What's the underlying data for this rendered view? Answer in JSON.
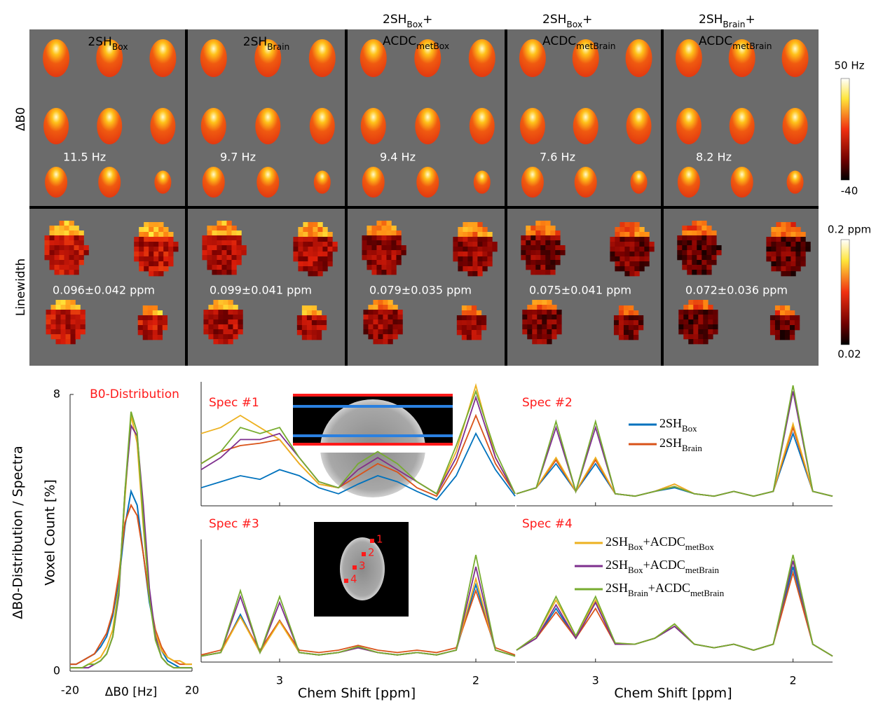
{
  "columns": [
    {
      "lines": [
        [
          "2SH",
          "Box"
        ]
      ]
    },
    {
      "lines": [
        [
          "2SH",
          "Brain"
        ]
      ]
    },
    {
      "lines": [
        [
          "2SH",
          "Box",
          "+"
        ],
        [
          "ACDC",
          "metBox"
        ]
      ]
    },
    {
      "lines": [
        [
          "2SH",
          "Box",
          "+"
        ],
        [
          "ACDC",
          "metBrain"
        ]
      ]
    },
    {
      "lines": [
        [
          "2SH",
          "Brain",
          "+"
        ],
        [
          "ACDC",
          "metBrain"
        ]
      ]
    }
  ],
  "rows": [
    "ΔB0",
    "Linewidth"
  ],
  "b0_annotations": [
    "11.5 Hz",
    "9.7 Hz",
    "9.4 Hz",
    "7.6 Hz",
    "8.2 Hz"
  ],
  "linewidth_annotations": [
    "0.096±0.042 ppm",
    "0.099±0.041 ppm",
    "0.079±0.035 ppm",
    "0.075±0.041 ppm",
    "0.072±0.036 ppm"
  ],
  "colorbars": [
    {
      "top": "50 Hz",
      "bottom": "-40"
    },
    {
      "top": "0.2 ppm",
      "bottom": "0.02"
    }
  ],
  "figure_ylabel": "ΔB0-Distribution / Spectra",
  "inset_points": [
    "1",
    "2",
    "3",
    "4"
  ],
  "chart_data": [
    {
      "type": "line",
      "title": "B0-Distribution",
      "ylabel": "Voxel Count [%]",
      "xlabel": "ΔB0 [Hz]",
      "x": [
        -20,
        -18,
        -16,
        -14,
        -12,
        -10,
        -8,
        -6,
        -4,
        -2,
        0,
        2,
        4,
        6,
        8,
        10,
        12,
        14,
        16,
        18,
        20
      ],
      "xlim": [
        -20,
        20
      ],
      "xticks": [
        -20,
        20
      ],
      "ylim": [
        0,
        8
      ],
      "yticks": [
        0,
        8
      ],
      "series": [
        {
          "name": [
            "2SH",
            "Box"
          ],
          "color": "#0072bd",
          "values": [
            0.2,
            0.2,
            0.3,
            0.4,
            0.5,
            0.7,
            1.0,
            1.6,
            2.6,
            4.2,
            5.2,
            4.8,
            3.4,
            2.0,
            1.1,
            0.6,
            0.3,
            0.2,
            0.1,
            0.1,
            0.1
          ]
        },
        {
          "name": [
            "2SH",
            "Brain"
          ],
          "color": "#d95319",
          "values": [
            0.2,
            0.2,
            0.3,
            0.4,
            0.5,
            0.8,
            1.1,
            1.7,
            2.8,
            4.3,
            4.8,
            4.5,
            3.4,
            2.1,
            1.2,
            0.7,
            0.4,
            0.3,
            0.2,
            0.2,
            0.2
          ]
        },
        {
          "name": [
            "2SH",
            "Box",
            "+ACDC",
            "metBox"
          ],
          "color": "#edb120",
          "values": [
            0.1,
            0.1,
            0.1,
            0.2,
            0.3,
            0.4,
            0.7,
            1.2,
            2.4,
            5.0,
            7.4,
            6.6,
            4.2,
            2.2,
            1.1,
            0.6,
            0.4,
            0.3,
            0.3,
            0.2,
            0.2
          ]
        },
        {
          "name": [
            "2SH",
            "Box",
            "+ACDC",
            "metBrain"
          ],
          "color": "#7e2f8e",
          "values": [
            0.1,
            0.1,
            0.1,
            0.1,
            0.2,
            0.3,
            0.5,
            1.0,
            2.2,
            5.2,
            7.1,
            6.8,
            4.8,
            2.4,
            1.0,
            0.4,
            0.2,
            0.1,
            0.1,
            0.1,
            0.1
          ]
        },
        {
          "name": [
            "2SH",
            "Brain",
            "+ACDC",
            "metBrain"
          ],
          "color": "#77ac30",
          "values": [
            0.1,
            0.1,
            0.1,
            0.2,
            0.2,
            0.3,
            0.5,
            1.0,
            2.3,
            5.2,
            7.5,
            6.9,
            4.4,
            2.1,
            0.9,
            0.4,
            0.2,
            0.1,
            0.1,
            0.1,
            0.1
          ]
        }
      ]
    },
    {
      "type": "spectra",
      "xlabel": "Chem Shift [ppm]",
      "x": [
        3.4,
        3.3,
        3.2,
        3.1,
        3.0,
        2.9,
        2.8,
        2.7,
        2.6,
        2.5,
        2.4,
        2.3,
        2.2,
        2.1,
        2.0,
        1.9,
        1.8
      ],
      "xlim": [
        3.4,
        1.8
      ],
      "xticks": [
        3,
        2
      ],
      "ylim": [
        0,
        10
      ],
      "panels": [
        {
          "label": "Spec #1",
          "series": [
            {
              "values": [
                1.5,
                2.0,
                2.5,
                2.2,
                3.0,
                2.5,
                1.5,
                1.0,
                1.8,
                2.5,
                2.0,
                1.2,
                0.5,
                2.5,
                6.0,
                3.0,
                0.8
              ]
            },
            {
              "values": [
                3.5,
                4.5,
                5.0,
                5.2,
                5.5,
                3.5,
                1.8,
                1.5,
                2.5,
                3.5,
                2.8,
                1.5,
                0.8,
                3.5,
                7.5,
                3.5,
                1.0
              ]
            },
            {
              "values": [
                6.0,
                6.5,
                7.5,
                6.5,
                5.5,
                3.5,
                1.8,
                1.5,
                3.0,
                4.0,
                3.0,
                2.0,
                1.0,
                4.5,
                10.0,
                4.0,
                1.0
              ]
            },
            {
              "values": [
                3.0,
                4.0,
                5.5,
                5.5,
                6.0,
                4.0,
                2.0,
                1.5,
                3.0,
                4.0,
                3.0,
                2.0,
                1.0,
                4.0,
                9.0,
                4.0,
                1.0
              ]
            },
            {
              "values": [
                3.5,
                4.5,
                6.5,
                6.0,
                6.5,
                4.0,
                2.0,
                1.5,
                3.5,
                4.5,
                3.5,
                2.0,
                1.0,
                5.0,
                9.5,
                4.5,
                1.0
              ]
            }
          ]
        },
        {
          "label": "Spec #2",
          "series": [
            {
              "values": [
                1,
                1.5,
                3.5,
                1.2,
                3.5,
                1.0,
                0.8,
                1.2,
                1.5,
                1.0,
                0.8,
                1.2,
                0.8,
                1.2,
                6.0,
                1.2,
                0.8
              ]
            },
            {
              "values": [
                1,
                1.5,
                3.8,
                1.2,
                3.8,
                1.0,
                0.8,
                1.2,
                1.8,
                1.0,
                0.8,
                1.2,
                0.8,
                1.2,
                6.5,
                1.2,
                0.8
              ]
            },
            {
              "values": [
                1,
                1.5,
                4.0,
                1.2,
                4.0,
                1.0,
                0.8,
                1.2,
                1.8,
                1.0,
                0.8,
                1.2,
                0.8,
                1.2,
                6.8,
                1.2,
                0.8
              ]
            },
            {
              "values": [
                1,
                1.5,
                6.5,
                1.2,
                6.5,
                1.0,
                0.8,
                1.2,
                1.6,
                1.0,
                0.8,
                1.2,
                0.8,
                1.2,
                9.5,
                1.2,
                0.8
              ]
            },
            {
              "values": [
                1,
                1.5,
                7.0,
                1.2,
                7.0,
                1.0,
                0.8,
                1.2,
                1.6,
                1.0,
                0.8,
                1.2,
                0.8,
                1.2,
                10.0,
                1.2,
                0.8
              ]
            }
          ]
        },
        {
          "label": "Spec #3",
          "series": [
            {
              "values": [
                0.5,
                0.8,
                4.0,
                0.8,
                3.5,
                0.8,
                0.6,
                0.8,
                1.2,
                0.8,
                0.6,
                0.8,
                0.6,
                1.0,
                6.5,
                1.0,
                0.5
              ]
            },
            {
              "values": [
                0.6,
                1.0,
                3.8,
                1.0,
                3.5,
                1.0,
                0.8,
                1.0,
                1.4,
                1.0,
                0.8,
                1.0,
                0.8,
                1.2,
                6.0,
                1.2,
                0.6
              ]
            },
            {
              "values": [
                0.5,
                0.8,
                3.8,
                0.8,
                3.4,
                0.8,
                0.6,
                0.8,
                1.2,
                0.8,
                0.6,
                0.8,
                0.6,
                1.0,
                7.0,
                1.0,
                0.5
              ]
            },
            {
              "values": [
                0.5,
                0.8,
                5.5,
                0.8,
                5.0,
                0.8,
                0.6,
                0.8,
                1.2,
                0.8,
                0.6,
                0.8,
                0.6,
                1.0,
                8.0,
                1.0,
                0.5
              ]
            },
            {
              "values": [
                0.5,
                0.8,
                6.0,
                0.8,
                5.5,
                0.8,
                0.6,
                0.8,
                1.3,
                0.8,
                0.6,
                0.8,
                0.6,
                1.0,
                9.0,
                1.0,
                0.5
              ]
            }
          ]
        },
        {
          "label": "Spec #4",
          "series": [
            {
              "values": [
                1,
                2.0,
                4.5,
                2.0,
                5.0,
                1.5,
                1.5,
                2.0,
                3.0,
                1.5,
                1.2,
                1.5,
                1.0,
                1.5,
                8.0,
                1.5,
                0.5
              ]
            },
            {
              "values": [
                1,
                2.0,
                4.2,
                2.0,
                4.5,
                1.5,
                1.5,
                2.0,
                3.0,
                1.5,
                1.2,
                1.5,
                1.0,
                1.5,
                7.5,
                1.5,
                0.5
              ]
            },
            {
              "values": [
                1,
                2.2,
                5.2,
                2.2,
                5.2,
                1.6,
                1.5,
                2.0,
                3.2,
                1.5,
                1.2,
                1.5,
                1.0,
                1.5,
                8.5,
                1.5,
                0.5
              ]
            },
            {
              "values": [
                1,
                2.0,
                4.8,
                2.0,
                5.0,
                1.5,
                1.5,
                2.0,
                3.0,
                1.5,
                1.2,
                1.5,
                1.0,
                1.5,
                8.5,
                1.5,
                0.5
              ]
            },
            {
              "values": [
                1,
                2.2,
                5.5,
                2.2,
                5.5,
                1.6,
                1.5,
                2.0,
                3.2,
                1.5,
                1.2,
                1.5,
                1.0,
                1.5,
                9.0,
                1.5,
                0.5
              ]
            }
          ]
        }
      ]
    }
  ]
}
